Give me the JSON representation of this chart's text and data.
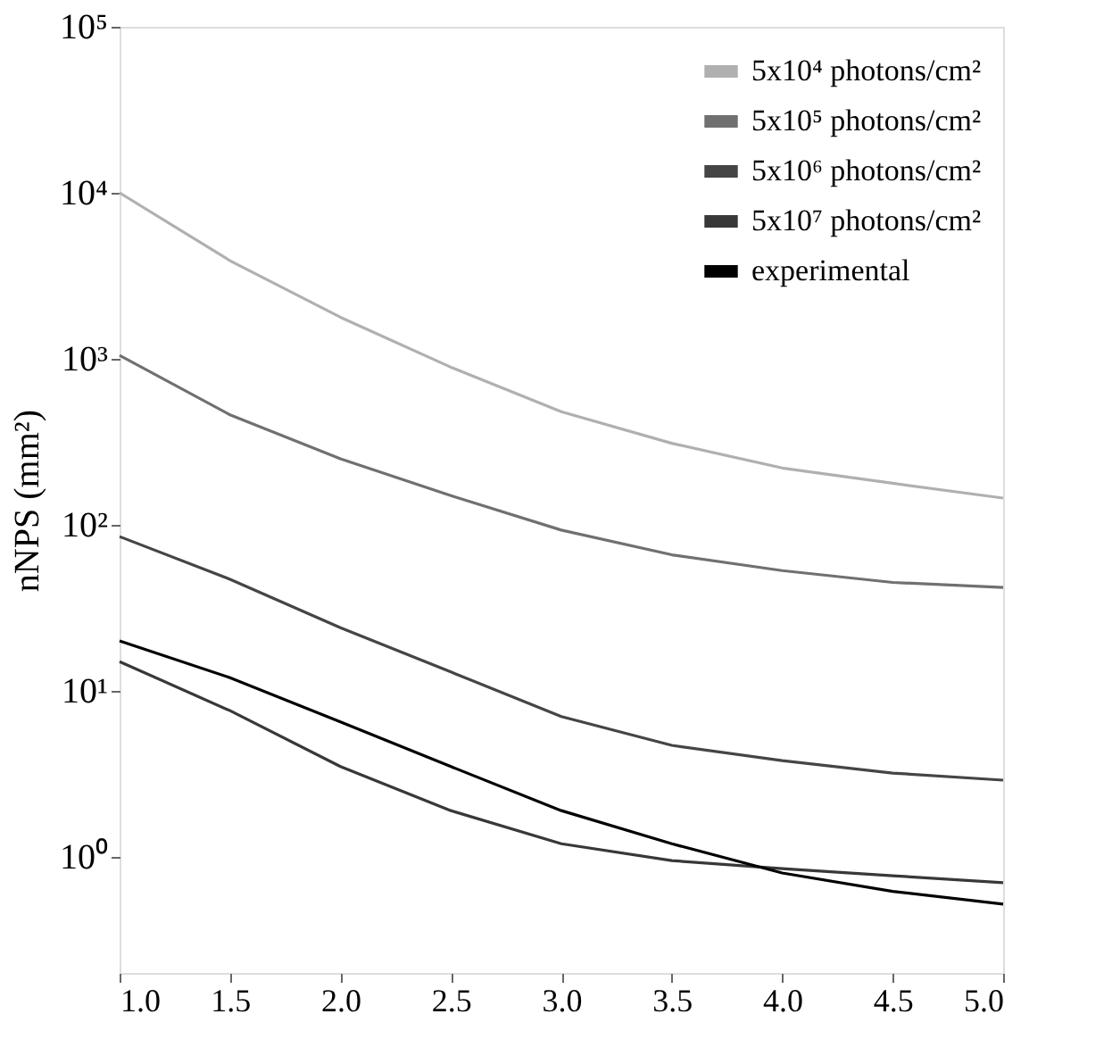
{
  "chart_data": {
    "type": "line",
    "ylabel": "nNPS (mm²)",
    "log": "y",
    "grid": false,
    "legend": "top right",
    "marker": "none",
    "line_style": "solid",
    "x": [
      1.0,
      1.5,
      2.0,
      2.5,
      3.0,
      3.5,
      4.0,
      4.5,
      5.0
    ],
    "xlim": [
      1.0,
      5.0
    ],
    "xticks": [
      {
        "value": 1.0,
        "label": "1.0"
      },
      {
        "value": 1.5,
        "label": "1.5"
      },
      {
        "value": 2.0,
        "label": "2.0"
      },
      {
        "value": 2.5,
        "label": "2.5"
      },
      {
        "value": 3.0,
        "label": "3.0"
      },
      {
        "value": 3.5,
        "label": "3.5"
      },
      {
        "value": 4.0,
        "label": "4.0"
      },
      {
        "value": 4.5,
        "label": "4.5"
      },
      {
        "value": 5.0,
        "label": "5.0"
      }
    ],
    "ylim": [
      0.2,
      100000
    ],
    "yticks": [
      {
        "value": 1,
        "label": "10⁰"
      },
      {
        "value": 10,
        "label": "10¹"
      },
      {
        "value": 100,
        "label": "10²"
      },
      {
        "value": 1000,
        "label": "10³"
      },
      {
        "value": 10000,
        "label": "10⁴"
      },
      {
        "value": 100000,
        "label": "10⁵"
      }
    ],
    "series": [
      {
        "name": "5x10⁴ photons/cm²",
        "color": "#b0b0b0",
        "values": [
          10000,
          3900,
          1780,
          890,
          480,
          310,
          220,
          178,
          145
        ]
      },
      {
        "name": "5x10⁵ photons/cm²",
        "color": "#707070",
        "values": [
          1050,
          460,
          250,
          150,
          93,
          66,
          53,
          45,
          42
        ]
      },
      {
        "name": "5x10⁶ photons/cm²",
        "color": "#454545",
        "values": [
          85,
          47,
          24,
          13,
          7,
          4.7,
          3.8,
          3.2,
          2.9
        ]
      },
      {
        "name": "5x10⁷ photons/cm²",
        "color": "#383838",
        "values": [
          15,
          7.6,
          3.5,
          1.9,
          1.2,
          0.95,
          0.85,
          0.77,
          0.7
        ]
      },
      {
        "name": "experimental",
        "color": "#000000",
        "values": [
          20,
          12,
          6.5,
          3.5,
          1.9,
          1.2,
          0.8,
          0.62,
          0.52
        ]
      }
    ]
  }
}
